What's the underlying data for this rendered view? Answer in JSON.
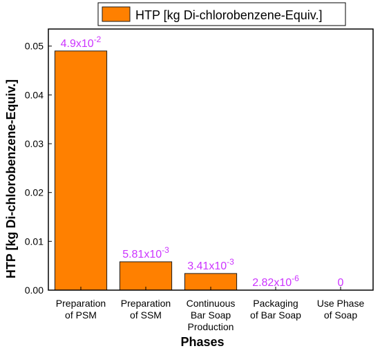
{
  "chart_data": {
    "type": "bar",
    "categories": [
      [
        "Preparation",
        "of PSM"
      ],
      [
        "Preparation",
        "of SSM"
      ],
      [
        "Continuous",
        "Bar Soap",
        "Production"
      ],
      [
        "Packaging",
        "of Bar Soap"
      ],
      [
        "Use Phase",
        "of Soap"
      ]
    ],
    "series": [
      {
        "name": "HTP [kg Di-chlorobenzene-Equiv.]",
        "values": [
          0.049,
          0.00581,
          0.00341,
          2.82e-06,
          0
        ],
        "labels": [
          {
            "base": "4.9x10",
            "exp": "-2"
          },
          {
            "base": "5.81x10",
            "exp": "-3"
          },
          {
            "base": "3.41x10",
            "exp": "-3"
          },
          {
            "base": "2.82x10",
            "exp": "-6"
          },
          {
            "base": "0",
            "exp": ""
          }
        ]
      }
    ],
    "xlabel": "Phases",
    "ylabel": "HTP [kg Di-chlorobenzene-Equiv.]",
    "ylim": [
      0,
      0.0535
    ],
    "yticks": [
      "0.00",
      "0.01",
      "0.02",
      "0.03",
      "0.04",
      "0.05"
    ],
    "ytick_values": [
      0,
      0.01,
      0.02,
      0.03,
      0.04,
      0.05
    ],
    "legend_position": "top-center",
    "grid": false,
    "colors": {
      "bar_fill": "#ff8000",
      "bar_edge": "#1a1a1a",
      "data_label": "#cc33ff",
      "axis": "#000000"
    }
  }
}
